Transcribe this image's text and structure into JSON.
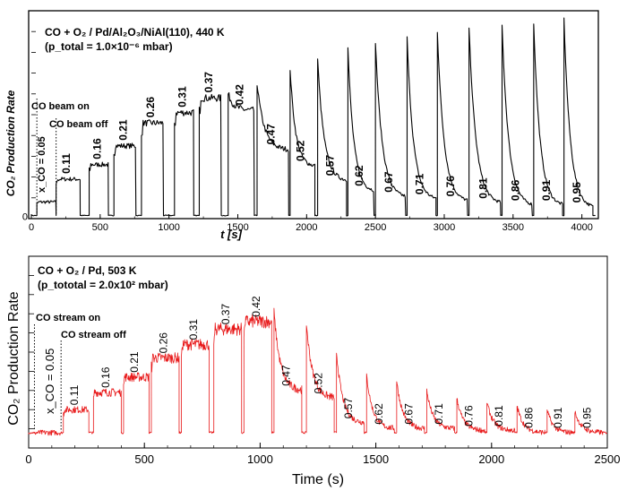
{
  "chart_data": [
    {
      "type": "line",
      "title": "CO + O₂ / Pd/Al₂O₃/NiAl(110), 440 K",
      "subtitle": "(p_total = 1.0×10⁻⁶ mbar)",
      "xlabel": "t [s]",
      "ylabel": "CO₂ Production Rate",
      "xlim": [
        0,
        4100
      ],
      "ylim": [
        0,
        100
      ],
      "x_ticks": [
        "0",
        "500",
        "1000",
        "1500",
        "2000",
        "2500",
        "3000",
        "3500",
        "4000"
      ],
      "y_ticks": [
        "0"
      ],
      "color": "#000000",
      "annotations": [
        "CO beam on",
        "CO beam off",
        "x_CO = 0.05"
      ],
      "step_labels": [
        "0.11",
        "0.16",
        "0.21",
        "0.26",
        "0.31",
        "0.37",
        "0.42",
        "0.47",
        "0.52",
        "0.57",
        "0.62",
        "0.67",
        "0.71",
        "0.76",
        "0.81",
        "0.86",
        "0.91",
        "0.95"
      ],
      "pulses": [
        {
          "label": "0.05",
          "start": 40,
          "end": 180,
          "level": 8,
          "peak": 8
        },
        {
          "label": "0.11",
          "start": 180,
          "end": 355,
          "level": 19,
          "peak": 19
        },
        {
          "label": "0.16",
          "start": 420,
          "end": 560,
          "level": 26,
          "peak": 26
        },
        {
          "label": "0.21",
          "start": 600,
          "end": 760,
          "level": 35,
          "peak": 35
        },
        {
          "label": "0.26",
          "start": 800,
          "end": 960,
          "level": 46,
          "peak": 46
        },
        {
          "label": "0.31",
          "start": 1040,
          "end": 1180,
          "level": 51,
          "peak": 51
        },
        {
          "label": "0.37",
          "start": 1220,
          "end": 1380,
          "level": 58,
          "peak": 58
        },
        {
          "label": "0.42",
          "start": 1430,
          "end": 1620,
          "level": 52,
          "peak": 60
        },
        {
          "label": "0.47",
          "start": 1640,
          "end": 1870,
          "level": 33,
          "peak": 65
        },
        {
          "label": "0.52",
          "start": 1880,
          "end": 2060,
          "level": 25,
          "peak": 72
        },
        {
          "label": "0.57",
          "start": 2080,
          "end": 2290,
          "level": 18,
          "peak": 77
        },
        {
          "label": "0.62",
          "start": 2300,
          "end": 2490,
          "level": 13,
          "peak": 82
        },
        {
          "label": "0.67",
          "start": 2500,
          "end": 2720,
          "level": 10,
          "peak": 85
        },
        {
          "label": "0.71",
          "start": 2730,
          "end": 2940,
          "level": 9,
          "peak": 87
        },
        {
          "label": "0.76",
          "start": 2950,
          "end": 3170,
          "level": 8,
          "peak": 90
        },
        {
          "label": "0.81",
          "start": 3180,
          "end": 3410,
          "level": 7,
          "peak": 92
        },
        {
          "label": "0.86",
          "start": 3420,
          "end": 3640,
          "level": 6,
          "peak": 93
        },
        {
          "label": "0.91",
          "start": 3650,
          "end": 3860,
          "level": 6,
          "peak": 94
        },
        {
          "label": "0.95",
          "start": 3870,
          "end": 4080,
          "level": 5,
          "peak": 96
        }
      ]
    },
    {
      "type": "line",
      "title": "CO + O₂ / Pd, 503 K",
      "subtitle": "(p_tototal = 2.0x10² mbar)",
      "xlabel": "Time (s)",
      "ylabel": "CO₂ Production Rate",
      "xlim": [
        0,
        2500
      ],
      "ylim": [
        0,
        100
      ],
      "x_ticks": [
        "0",
        "500",
        "1000",
        "1500",
        "2000",
        "2500"
      ],
      "color": "#e8191a",
      "annotations": [
        "CO stream on",
        "CO stream off",
        "x_CO = 0.05"
      ],
      "step_labels": [
        "0.11",
        "0.16",
        "0.21",
        "0.26",
        "0.31",
        "0.37",
        "0.42",
        "0.47",
        "0.52",
        "0.57",
        "0.62",
        "0.67",
        "0.71",
        "0.76",
        "0.81",
        "0.86",
        "0.91",
        "0.95"
      ],
      "pulses": [
        {
          "label": "0.05",
          "start": 25,
          "end": 140,
          "level": 8,
          "peak": 8
        },
        {
          "label": "0.11",
          "start": 150,
          "end": 260,
          "level": 20,
          "peak": 20
        },
        {
          "label": "0.16",
          "start": 280,
          "end": 400,
          "level": 29,
          "peak": 29
        },
        {
          "label": "0.21",
          "start": 410,
          "end": 520,
          "level": 37,
          "peak": 37
        },
        {
          "label": "0.26",
          "start": 530,
          "end": 650,
          "level": 47,
          "peak": 47
        },
        {
          "label": "0.31",
          "start": 660,
          "end": 780,
          "level": 54,
          "peak": 54
        },
        {
          "label": "0.37",
          "start": 800,
          "end": 920,
          "level": 62,
          "peak": 62
        },
        {
          "label": "0.42",
          "start": 930,
          "end": 1050,
          "level": 66,
          "peak": 66
        },
        {
          "label": "0.47",
          "start": 1060,
          "end": 1180,
          "level": 30,
          "peak": 71
        },
        {
          "label": "0.52",
          "start": 1200,
          "end": 1320,
          "level": 26,
          "peak": 65
        },
        {
          "label": "0.57",
          "start": 1330,
          "end": 1450,
          "level": 13,
          "peak": 50
        },
        {
          "label": "0.62",
          "start": 1460,
          "end": 1580,
          "level": 10,
          "peak": 38
        },
        {
          "label": "0.67",
          "start": 1590,
          "end": 1710,
          "level": 10,
          "peak": 35
        },
        {
          "label": "0.71",
          "start": 1720,
          "end": 1840,
          "level": 10,
          "peak": 30
        },
        {
          "label": "0.76",
          "start": 1850,
          "end": 1970,
          "level": 9,
          "peak": 26
        },
        {
          "label": "0.81",
          "start": 1980,
          "end": 2100,
          "level": 9,
          "peak": 24
        },
        {
          "label": "0.86",
          "start": 2110,
          "end": 2230,
          "level": 8,
          "peak": 22
        },
        {
          "label": "0.91",
          "start": 2240,
          "end": 2350,
          "level": 8,
          "peak": 20
        },
        {
          "label": "0.95",
          "start": 2360,
          "end": 2480,
          "level": 8,
          "peak": 19
        }
      ]
    }
  ]
}
